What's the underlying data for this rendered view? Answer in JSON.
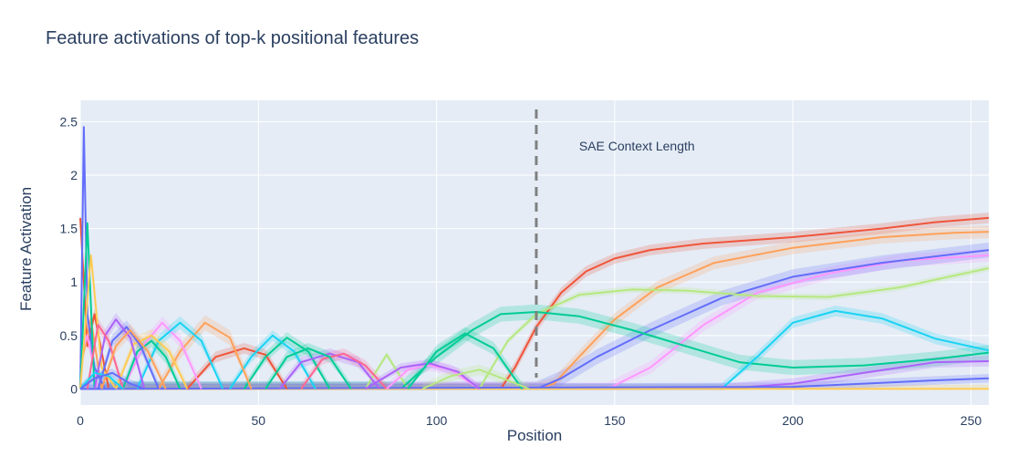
{
  "chart_data": {
    "type": "line",
    "title": "Feature activations of top-k positional features",
    "xlabel": "Position",
    "ylabel": "Feature Activation",
    "xlim": [
      0,
      255
    ],
    "ylim": [
      -0.15,
      2.7
    ],
    "xticks": [
      0,
      50,
      100,
      150,
      200,
      250
    ],
    "yticks": [
      0,
      0.5,
      1,
      1.5,
      2,
      2.5
    ],
    "ytick_labels": [
      "0",
      "0.5",
      "1",
      "1.5",
      "2",
      "2.5"
    ],
    "grid": true,
    "legend": "none",
    "background": "#E5ECF6",
    "annotations": [
      {
        "text": "SAE Context Length",
        "x": 140,
        "y": 2.23,
        "type": "text"
      },
      {
        "text": "",
        "x": 128,
        "type": "vline",
        "style": "dashed",
        "color": "#808080"
      }
    ],
    "series": [
      {
        "color": "#EF553B",
        "band": 0.05,
        "points": [
          [
            0,
            1.6
          ],
          [
            2,
            0.4
          ],
          [
            4,
            0.7
          ],
          [
            8,
            0.0
          ],
          [
            118,
            0.0
          ],
          [
            122,
            0.2
          ],
          [
            128,
            0.58
          ],
          [
            135,
            0.9
          ],
          [
            142,
            1.1
          ],
          [
            150,
            1.22
          ],
          [
            160,
            1.3
          ],
          [
            175,
            1.36
          ],
          [
            200,
            1.42
          ],
          [
            225,
            1.5
          ],
          [
            240,
            1.56
          ],
          [
            255,
            1.6
          ]
        ]
      },
      {
        "color": "#FFA15A",
        "band": 0.06,
        "points": [
          [
            0,
            0.2
          ],
          [
            3,
            0.65
          ],
          [
            6,
            0.0
          ],
          [
            128,
            0.0
          ],
          [
            133,
            0.05
          ],
          [
            140,
            0.3
          ],
          [
            150,
            0.65
          ],
          [
            162,
            0.95
          ],
          [
            178,
            1.18
          ],
          [
            200,
            1.32
          ],
          [
            225,
            1.42
          ],
          [
            245,
            1.46
          ],
          [
            255,
            1.47
          ]
        ]
      },
      {
        "color": "#FF97FF",
        "band": 0.06,
        "points": [
          [
            0,
            0.3
          ],
          [
            2,
            0.5
          ],
          [
            5,
            0.0
          ],
          [
            148,
            0.0
          ],
          [
            160,
            0.2
          ],
          [
            175,
            0.6
          ],
          [
            190,
            0.9
          ],
          [
            210,
            1.08
          ],
          [
            230,
            1.2
          ],
          [
            255,
            1.25
          ]
        ]
      },
      {
        "color": "#636EFA",
        "band": 0.07,
        "points": [
          [
            0,
            0.0
          ],
          [
            1,
            2.45
          ],
          [
            2,
            0.7
          ],
          [
            4,
            0.2
          ],
          [
            7,
            0.0
          ],
          [
            128,
            0.0
          ],
          [
            135,
            0.1
          ],
          [
            145,
            0.3
          ],
          [
            160,
            0.55
          ],
          [
            180,
            0.85
          ],
          [
            200,
            1.05
          ],
          [
            225,
            1.18
          ],
          [
            255,
            1.3
          ]
        ]
      },
      {
        "color": "#B6E880",
        "band": 0.03,
        "points": [
          [
            0,
            0.0
          ],
          [
            80,
            0.0
          ],
          [
            86,
            0.32
          ],
          [
            92,
            0.0
          ],
          [
            112,
            0.0
          ],
          [
            120,
            0.45
          ],
          [
            128,
            0.7
          ],
          [
            140,
            0.88
          ],
          [
            155,
            0.93
          ],
          [
            170,
            0.92
          ],
          [
            190,
            0.87
          ],
          [
            210,
            0.86
          ],
          [
            230,
            0.95
          ],
          [
            255,
            1.13
          ]
        ]
      },
      {
        "color": "#00CC96",
        "band": 0.07,
        "points": [
          [
            0,
            0.0
          ],
          [
            2,
            1.55
          ],
          [
            4,
            0.0
          ],
          [
            90,
            0.0
          ],
          [
            100,
            0.3
          ],
          [
            110,
            0.55
          ],
          [
            118,
            0.7
          ],
          [
            128,
            0.72
          ],
          [
            140,
            0.68
          ],
          [
            155,
            0.55
          ],
          [
            170,
            0.4
          ],
          [
            185,
            0.25
          ],
          [
            200,
            0.2
          ],
          [
            220,
            0.22
          ],
          [
            240,
            0.28
          ],
          [
            255,
            0.34
          ]
        ]
      },
      {
        "color": "#19D3F3",
        "band": 0.05,
        "points": [
          [
            0,
            0.0
          ],
          [
            180,
            0.0
          ],
          [
            190,
            0.3
          ],
          [
            200,
            0.62
          ],
          [
            212,
            0.73
          ],
          [
            225,
            0.66
          ],
          [
            240,
            0.47
          ],
          [
            255,
            0.36
          ]
        ]
      },
      {
        "color": "#AB63FA",
        "band": 0.05,
        "points": [
          [
            0,
            0.0
          ],
          [
            180,
            0.0
          ],
          [
            200,
            0.05
          ],
          [
            220,
            0.15
          ],
          [
            240,
            0.25
          ],
          [
            255,
            0.26
          ]
        ]
      },
      {
        "color": "#FECB52",
        "band": 0.04,
        "points": [
          [
            0,
            0.0
          ],
          [
            3,
            1.25
          ],
          [
            6,
            0.2
          ],
          [
            10,
            0.0
          ],
          [
            255,
            0.0
          ]
        ]
      },
      {
        "color": "#636EFA",
        "band": 0.04,
        "points": [
          [
            0,
            0.0
          ],
          [
            200,
            0.02
          ],
          [
            220,
            0.05
          ],
          [
            240,
            0.08
          ],
          [
            255,
            0.1
          ]
        ]
      },
      {
        "color": "#EF553B",
        "band": 0.05,
        "points": [
          [
            30,
            0.0
          ],
          [
            38,
            0.3
          ],
          [
            46,
            0.38
          ],
          [
            52,
            0.32
          ],
          [
            58,
            0.0
          ]
        ]
      },
      {
        "color": "#00CC96",
        "band": 0.05,
        "points": [
          [
            46,
            0.0
          ],
          [
            52,
            0.3
          ],
          [
            58,
            0.48
          ],
          [
            64,
            0.35
          ],
          [
            70,
            0.0
          ]
        ]
      },
      {
        "color": "#19D3F3",
        "band": 0.05,
        "points": [
          [
            42,
            0.0
          ],
          [
            48,
            0.3
          ],
          [
            54,
            0.5
          ],
          [
            60,
            0.35
          ],
          [
            66,
            0.0
          ]
        ]
      },
      {
        "color": "#AB63FA",
        "band": 0.05,
        "points": [
          [
            56,
            0.0
          ],
          [
            62,
            0.25
          ],
          [
            70,
            0.33
          ],
          [
            78,
            0.25
          ],
          [
            84,
            0.0
          ]
        ]
      },
      {
        "color": "#FF6692",
        "band": 0.05,
        "points": [
          [
            62,
            0.0
          ],
          [
            68,
            0.28
          ],
          [
            74,
            0.33
          ],
          [
            80,
            0.22
          ],
          [
            86,
            0.0
          ]
        ]
      },
      {
        "color": "#00CC96",
        "band": 0.05,
        "points": [
          [
            52,
            0.0
          ],
          [
            58,
            0.3
          ],
          [
            64,
            0.38
          ],
          [
            70,
            0.3
          ],
          [
            76,
            0.0
          ]
        ]
      },
      {
        "color": "#FF97FF",
        "band": 0.05,
        "points": [
          [
            86,
            0.0
          ],
          [
            92,
            0.18
          ],
          [
            98,
            0.22
          ],
          [
            104,
            0.18
          ],
          [
            112,
            0.0
          ]
        ]
      },
      {
        "color": "#AB63FA",
        "band": 0.04,
        "points": [
          [
            80,
            0.0
          ],
          [
            90,
            0.2
          ],
          [
            98,
            0.24
          ],
          [
            106,
            0.16
          ],
          [
            112,
            0.0
          ]
        ]
      },
      {
        "color": "#00CC96",
        "band": 0.06,
        "points": [
          [
            92,
            0.0
          ],
          [
            100,
            0.35
          ],
          [
            108,
            0.52
          ],
          [
            116,
            0.38
          ],
          [
            124,
            0.0
          ]
        ]
      },
      {
        "color": "#B6E880",
        "band": 0.05,
        "points": [
          [
            96,
            0.0
          ],
          [
            104,
            0.12
          ],
          [
            112,
            0.18
          ],
          [
            120,
            0.08
          ],
          [
            126,
            0.0
          ]
        ]
      },
      {
        "color": "#FFA15A",
        "band": 0.07,
        "points": [
          [
            22,
            0.0
          ],
          [
            28,
            0.35
          ],
          [
            35,
            0.62
          ],
          [
            42,
            0.48
          ],
          [
            48,
            0.0
          ]
        ]
      },
      {
        "color": "#FF97FF",
        "band": 0.06,
        "points": [
          [
            12,
            0.0
          ],
          [
            18,
            0.42
          ],
          [
            23,
            0.62
          ],
          [
            28,
            0.45
          ],
          [
            34,
            0.0
          ]
        ]
      },
      {
        "color": "#19D3F3",
        "band": 0.06,
        "points": [
          [
            16,
            0.0
          ],
          [
            22,
            0.45
          ],
          [
            28,
            0.62
          ],
          [
            34,
            0.45
          ],
          [
            40,
            0.0
          ]
        ]
      },
      {
        "color": "#FECB52",
        "band": 0.06,
        "points": [
          [
            10,
            0.0
          ],
          [
            15,
            0.42
          ],
          [
            20,
            0.5
          ],
          [
            25,
            0.35
          ],
          [
            30,
            0.0
          ]
        ]
      },
      {
        "color": "#00CC96",
        "band": 0.06,
        "points": [
          [
            12,
            0.0
          ],
          [
            16,
            0.35
          ],
          [
            20,
            0.45
          ],
          [
            24,
            0.3
          ],
          [
            28,
            0.0
          ]
        ]
      },
      {
        "color": "#636EFA",
        "band": 0.06,
        "points": [
          [
            5,
            0.0
          ],
          [
            9,
            0.45
          ],
          [
            13,
            0.58
          ],
          [
            17,
            0.4
          ],
          [
            22,
            0.0
          ]
        ]
      },
      {
        "color": "#AB63FA",
        "band": 0.06,
        "points": [
          [
            4,
            0.0
          ],
          [
            7,
            0.5
          ],
          [
            10,
            0.65
          ],
          [
            14,
            0.48
          ],
          [
            18,
            0.0
          ]
        ]
      },
      {
        "color": "#FF6692",
        "band": 0.06,
        "points": [
          [
            2,
            0.0
          ],
          [
            5,
            0.6
          ],
          [
            8,
            0.45
          ],
          [
            12,
            0.0
          ]
        ]
      },
      {
        "color": "#FFA15A",
        "band": 0.06,
        "points": [
          [
            6,
            0.0
          ],
          [
            10,
            0.4
          ],
          [
            14,
            0.55
          ],
          [
            19,
            0.35
          ],
          [
            24,
            0.0
          ]
        ]
      },
      {
        "color": "#19D3F3",
        "band": 0.04,
        "points": [
          [
            0,
            0.0
          ],
          [
            4,
            0.15
          ],
          [
            8,
            0.12
          ],
          [
            12,
            0.0
          ]
        ]
      },
      {
        "color": "#636EFA",
        "band": 0.04,
        "points": [
          [
            0,
            0.0
          ],
          [
            4,
            0.1
          ],
          [
            9,
            0.15
          ],
          [
            14,
            0.05
          ],
          [
            18,
            0.0
          ]
        ]
      }
    ]
  }
}
